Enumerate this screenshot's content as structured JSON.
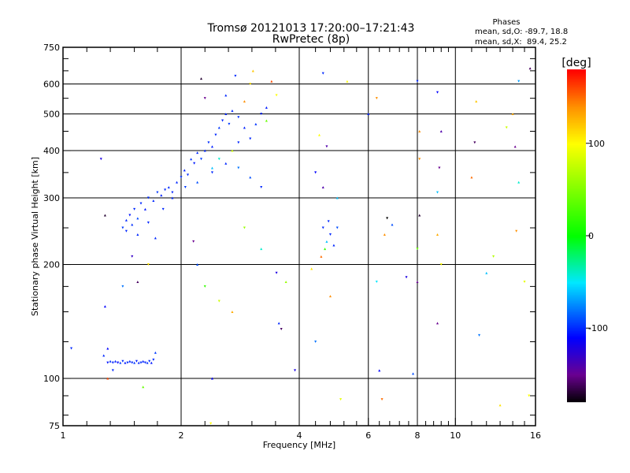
{
  "chart_data": {
    "type": "scatter",
    "title": "Tromsø 20121013 17:20:00–17:21:43",
    "subtitle": "RwPretec (8p)",
    "annotation": {
      "heading": "Phases",
      "line_o": "mean, sd,O: -89.7, 18.8",
      "line_x": "mean, sd,X:  89.4, 25.2"
    },
    "xlabel": "Frequency [MHz]",
    "ylabel": "Stationary phase Virtual Height [km]",
    "xscale": "log",
    "yscale": "log",
    "xlim": [
      1,
      16
    ],
    "ylim": [
      75,
      750
    ],
    "xticks": [
      {
        "v": 1,
        "label": "1"
      },
      {
        "v": 2,
        "label": "2"
      },
      {
        "v": 4,
        "label": "4"
      },
      {
        "v": 6,
        "label": "6"
      },
      {
        "v": 8,
        "label": "8"
      },
      {
        "v": 10,
        "label": "10"
      },
      {
        "v": 16,
        "label": "16"
      }
    ],
    "xgrid": [
      2,
      4,
      6,
      8,
      10
    ],
    "xminor": [
      1.15,
      1.32,
      1.52,
      1.74,
      2.3,
      2.64,
      3.03,
      3.48,
      4.4,
      4.8,
      5.2,
      5.6,
      6.4,
      6.8,
      7.2,
      7.6,
      8.4,
      8.8,
      9.2,
      9.6,
      11,
      12,
      13,
      14,
      15
    ],
    "yticks": [
      {
        "v": 75,
        "label": "75"
      },
      {
        "v": 100,
        "label": "100"
      },
      {
        "v": 200,
        "label": "200"
      },
      {
        "v": 300,
        "label": "300"
      },
      {
        "v": 400,
        "label": "400"
      },
      {
        "v": 500,
        "label": "500"
      },
      {
        "v": 600,
        "label": "600"
      },
      {
        "v": 750,
        "label": "750"
      }
    ],
    "ygrid": [
      100,
      200,
      300,
      400,
      500,
      600
    ],
    "yminor": [
      80,
      90,
      125,
      150,
      175,
      250,
      350,
      450,
      550,
      650,
      700
    ],
    "colorbar": {
      "label": "[deg]",
      "range": [
        -180,
        180
      ],
      "ticks": [
        {
          "v": 100,
          "label": "100"
        },
        {
          "v": 0,
          "label": "0"
        },
        {
          "v": -100,
          "label": "-100"
        }
      ],
      "stops": [
        {
          "v": -180,
          "color": "#000000"
        },
        {
          "v": -150,
          "color": "#6a0090"
        },
        {
          "v": -110,
          "color": "#0000ff"
        },
        {
          "v": -50,
          "color": "#00e8ff"
        },
        {
          "v": 0,
          "color": "#00ff00"
        },
        {
          "v": 100,
          "color": "#ffff00"
        },
        {
          "v": 140,
          "color": "#ff9000"
        },
        {
          "v": 180,
          "color": "#ff0000"
        }
      ]
    },
    "points_columns": [
      "freq_MHz",
      "height_km",
      "phase_deg"
    ],
    "points": [
      [
        1.27,
        115,
        -100
      ],
      [
        1.3,
        110,
        -105
      ],
      [
        1.32,
        111,
        -98
      ],
      [
        1.34,
        110,
        -102
      ],
      [
        1.36,
        111,
        -100
      ],
      [
        1.38,
        110,
        -110
      ],
      [
        1.4,
        110,
        -95
      ],
      [
        1.42,
        111,
        -100
      ],
      [
        1.44,
        110,
        -104
      ],
      [
        1.46,
        110,
        -99
      ],
      [
        1.48,
        111,
        -101
      ],
      [
        1.5,
        110,
        -100
      ],
      [
        1.52,
        110,
        -96
      ],
      [
        1.54,
        111,
        -103
      ],
      [
        1.56,
        110,
        -100
      ],
      [
        1.58,
        110,
        -98
      ],
      [
        1.6,
        111,
        -102
      ],
      [
        1.62,
        110,
        -100
      ],
      [
        1.64,
        110,
        -97
      ],
      [
        1.66,
        111,
        -100
      ],
      [
        1.68,
        110,
        -104
      ],
      [
        1.7,
        112,
        -100
      ],
      [
        1.3,
        120,
        -110
      ],
      [
        1.34,
        105,
        -100
      ],
      [
        1.72,
        117,
        -95
      ],
      [
        1.42,
        250,
        -95
      ],
      [
        1.45,
        262,
        -100
      ],
      [
        1.48,
        270,
        -105
      ],
      [
        1.5,
        255,
        -98
      ],
      [
        1.52,
        280,
        -100
      ],
      [
        1.55,
        265,
        -92
      ],
      [
        1.58,
        290,
        -100
      ],
      [
        1.62,
        280,
        -104
      ],
      [
        1.65,
        300,
        -98
      ],
      [
        1.7,
        295,
        -100
      ],
      [
        1.74,
        310,
        -96
      ],
      [
        1.78,
        305,
        -102
      ],
      [
        1.82,
        315,
        -100
      ],
      [
        1.86,
        320,
        -99
      ],
      [
        1.9,
        310,
        -101
      ],
      [
        1.95,
        330,
        -100
      ],
      [
        2.0,
        340,
        -98
      ],
      [
        2.04,
        355,
        -102
      ],
      [
        2.08,
        345,
        -100
      ],
      [
        2.12,
        380,
        -97
      ],
      [
        2.16,
        370,
        -103
      ],
      [
        2.2,
        395,
        -100
      ],
      [
        2.25,
        380,
        -95
      ],
      [
        2.3,
        400,
        -100
      ],
      [
        2.35,
        420,
        -98
      ],
      [
        2.4,
        410,
        -102
      ],
      [
        2.45,
        440,
        -100
      ],
      [
        2.5,
        460,
        -96
      ],
      [
        2.55,
        480,
        -101
      ],
      [
        2.6,
        500,
        -100
      ],
      [
        2.65,
        470,
        -95
      ],
      [
        2.7,
        510,
        -100
      ],
      [
        2.8,
        490,
        -98
      ],
      [
        2.9,
        460,
        -102
      ],
      [
        3.0,
        430,
        -100
      ],
      [
        3.1,
        470,
        -97
      ],
      [
        3.2,
        500,
        -100
      ],
      [
        3.3,
        520,
        -103
      ],
      [
        1.45,
        245,
        -100
      ],
      [
        1.55,
        240,
        -100
      ],
      [
        1.65,
        258,
        -100
      ],
      [
        1.72,
        235,
        -100
      ],
      [
        1.8,
        280,
        -100
      ],
      [
        1.9,
        300,
        -100
      ],
      [
        2.05,
        320,
        -95
      ],
      [
        2.2,
        330,
        -90
      ],
      [
        2.4,
        350,
        -100
      ],
      [
        2.6,
        370,
        -100
      ],
      [
        2.8,
        360,
        -80
      ],
      [
        3.0,
        340,
        -90
      ],
      [
        3.2,
        320,
        -100
      ],
      [
        2.4,
        360,
        -60
      ],
      [
        2.5,
        380,
        -40
      ],
      [
        2.7,
        400,
        80
      ],
      [
        2.8,
        420,
        -100
      ],
      [
        2.9,
        540,
        140
      ],
      [
        3.0,
        600,
        110
      ],
      [
        2.6,
        560,
        -100
      ],
      [
        2.3,
        550,
        -150
      ],
      [
        3.4,
        610,
        160
      ],
      [
        3.5,
        560,
        100
      ],
      [
        3.3,
        480,
        40
      ],
      [
        4.6,
        250,
        -100
      ],
      [
        4.7,
        230,
        -60
      ],
      [
        4.8,
        240,
        -100
      ],
      [
        4.9,
        225,
        -100
      ],
      [
        4.75,
        260,
        -100
      ],
      [
        4.65,
        220,
        20
      ],
      [
        5.0,
        250,
        -90
      ],
      [
        4.55,
        210,
        150
      ],
      [
        1.25,
        380,
        -120
      ],
      [
        1.28,
        270,
        -170
      ],
      [
        1.5,
        210,
        -130
      ],
      [
        1.55,
        180,
        -160
      ],
      [
        1.42,
        175,
        -80
      ],
      [
        1.6,
        95,
        40
      ],
      [
        1.65,
        200,
        110
      ],
      [
        1.28,
        155,
        -110
      ],
      [
        1.05,
        120,
        -100
      ],
      [
        1.3,
        100,
        160
      ],
      [
        2.15,
        230,
        -150
      ],
      [
        2.2,
        200,
        -90
      ],
      [
        2.3,
        175,
        20
      ],
      [
        2.4,
        100,
        -110
      ],
      [
        2.5,
        160,
        80
      ],
      [
        2.7,
        150,
        130
      ],
      [
        2.9,
        250,
        60
      ],
      [
        3.2,
        220,
        -40
      ],
      [
        3.5,
        190,
        -120
      ],
      [
        3.55,
        140,
        -100
      ],
      [
        3.6,
        135,
        -160
      ],
      [
        3.7,
        180,
        60
      ],
      [
        3.9,
        105,
        -120
      ],
      [
        4.3,
        195,
        110
      ],
      [
        4.4,
        125,
        -80
      ],
      [
        4.8,
        165,
        140
      ],
      [
        5.1,
        88,
        90
      ],
      [
        4.5,
        440,
        100
      ],
      [
        4.4,
        350,
        -110
      ],
      [
        4.6,
        320,
        -140
      ],
      [
        4.7,
        410,
        -140
      ],
      [
        5.0,
        300,
        -60
      ],
      [
        6.3,
        180,
        -50
      ],
      [
        6.4,
        105,
        -110
      ],
      [
        6.5,
        88,
        150
      ],
      [
        6.6,
        240,
        140
      ],
      [
        6.7,
        265,
        -180
      ],
      [
        6.9,
        255,
        -90
      ],
      [
        7.5,
        185,
        -120
      ],
      [
        7.8,
        103,
        -90
      ],
      [
        6.3,
        550,
        140
      ],
      [
        6.0,
        500,
        -100
      ],
      [
        8.0,
        610,
        -100
      ],
      [
        8.1,
        450,
        140
      ],
      [
        8.1,
        380,
        140
      ],
      [
        8.1,
        270,
        -170
      ],
      [
        8.0,
        220,
        40
      ],
      [
        8.0,
        180,
        -150
      ],
      [
        9.0,
        570,
        -110
      ],
      [
        9.2,
        450,
        -140
      ],
      [
        9.1,
        360,
        -150
      ],
      [
        9.0,
        240,
        130
      ],
      [
        9.2,
        200,
        100
      ],
      [
        9.0,
        140,
        -150
      ],
      [
        9.0,
        310,
        -60
      ],
      [
        11.0,
        340,
        150
      ],
      [
        11.2,
        420,
        -160
      ],
      [
        11.3,
        540,
        120
      ],
      [
        11.5,
        130,
        -80
      ],
      [
        12.0,
        190,
        -60
      ],
      [
        12.5,
        210,
        70
      ],
      [
        13,
        85,
        110
      ],
      [
        13.5,
        460,
        80
      ],
      [
        14,
        500,
        130
      ],
      [
        14.5,
        610,
        -70
      ],
      [
        14.2,
        410,
        -150
      ],
      [
        14.3,
        245,
        140
      ],
      [
        14.5,
        330,
        -40
      ],
      [
        15.0,
        180,
        90
      ],
      [
        15.5,
        660,
        -160
      ],
      [
        15.4,
        90,
        100
      ],
      [
        2.25,
        620,
        -170
      ],
      [
        2.75,
        630,
        -100
      ],
      [
        3.05,
        650,
        120
      ],
      [
        4.6,
        640,
        -100
      ],
      [
        5.3,
        610,
        100
      ],
      [
        2.38,
        76,
        100
      ]
    ]
  }
}
